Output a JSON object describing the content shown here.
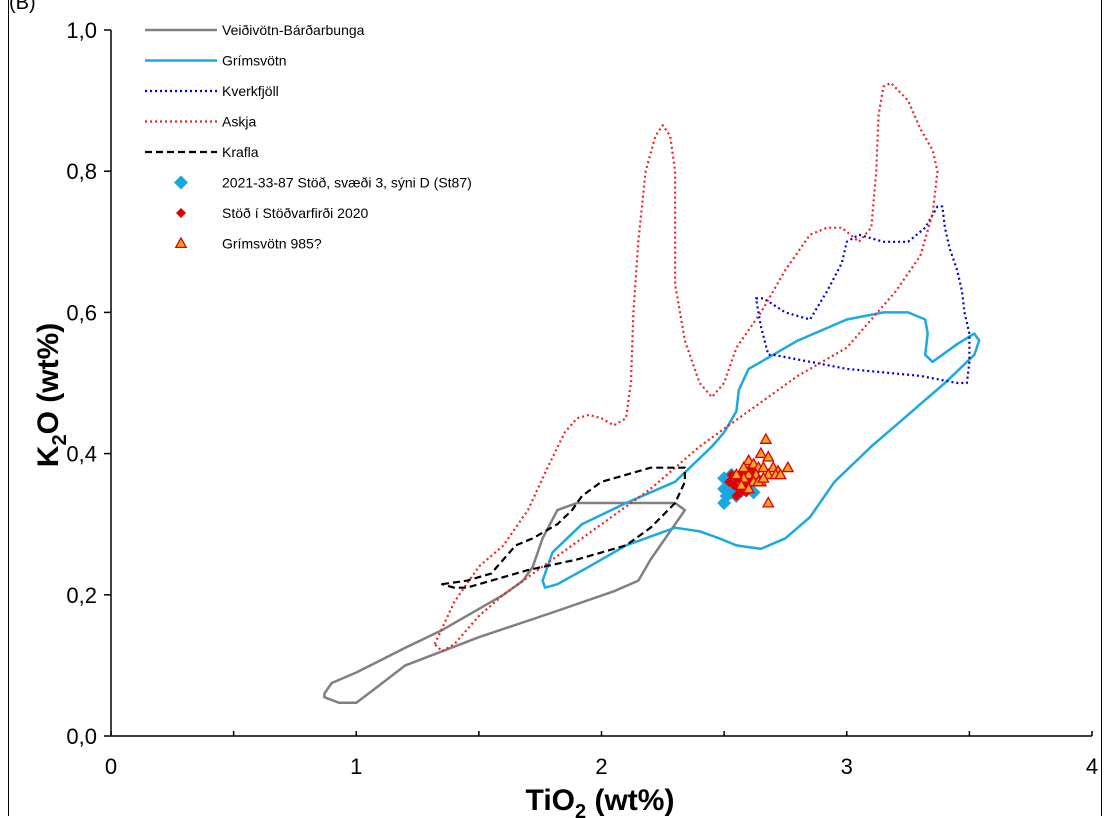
{
  "panel_label": "(B)",
  "colors": {
    "veidivotn": "#808080",
    "grimsvotn": "#1ba9e1",
    "kverkfjoll": "#0000cc",
    "askja": "#ee2222",
    "krafla": "#000000",
    "st87": "#1aa7e0",
    "stod2020": "#e00000",
    "grimsvotn985_edge": "#e00000",
    "grimsvotn985_fill": "#f5a623"
  },
  "chart_data": {
    "type": "scatter",
    "title": "",
    "xlabel": "TiO",
    "xlabel_sub": "2",
    "xlabel_suffix": " (wt%)",
    "ylabel": "K",
    "ylabel_sub": "2",
    "ylabel_suffix": "O (wt%)",
    "xlim": [
      0,
      4
    ],
    "ylim": [
      0,
      1
    ],
    "x_ticks": [
      {
        "value": 0,
        "label": "0"
      },
      {
        "value": 1,
        "label": "1"
      },
      {
        "value": 2,
        "label": "2"
      },
      {
        "value": 3,
        "label": "3"
      },
      {
        "value": 4,
        "label": "4"
      }
    ],
    "y_ticks": [
      {
        "value": 0,
        "label": "0,0"
      },
      {
        "value": 0.2,
        "label": "0,2"
      },
      {
        "value": 0.4,
        "label": "0,4"
      },
      {
        "value": 0.6,
        "label": "0,6"
      },
      {
        "value": 0.8,
        "label": "0,8"
      },
      {
        "value": 1.0,
        "label": "1,0"
      }
    ],
    "x_minor_step": 0.5,
    "grid": false,
    "legend_position": "top-left",
    "fields": [
      {
        "name": "Veiðivötn-Bárðarbunga",
        "style": "solid",
        "color_key": "veidivotn",
        "points": [
          [
            0.87,
            0.06
          ],
          [
            0.9,
            0.075
          ],
          [
            1.0,
            0.09
          ],
          [
            1.2,
            0.125
          ],
          [
            1.35,
            0.15
          ],
          [
            1.5,
            0.18
          ],
          [
            1.6,
            0.2
          ],
          [
            1.68,
            0.22
          ],
          [
            1.72,
            0.24
          ],
          [
            1.76,
            0.28
          ],
          [
            1.82,
            0.32
          ],
          [
            1.9,
            0.33
          ],
          [
            2.1,
            0.33
          ],
          [
            2.3,
            0.33
          ],
          [
            2.34,
            0.32
          ],
          [
            2.3,
            0.3
          ],
          [
            2.2,
            0.25
          ],
          [
            2.15,
            0.22
          ],
          [
            2.05,
            0.205
          ],
          [
            1.8,
            0.175
          ],
          [
            1.5,
            0.14
          ],
          [
            1.2,
            0.1
          ],
          [
            1.05,
            0.06
          ],
          [
            1.0,
            0.047
          ],
          [
            0.93,
            0.047
          ],
          [
            0.87,
            0.055
          ]
        ]
      },
      {
        "name": "Grímsvötn",
        "style": "solid",
        "color_key": "grimsvotn",
        "points": [
          [
            1.8,
            0.26
          ],
          [
            1.92,
            0.3
          ],
          [
            2.1,
            0.33
          ],
          [
            2.3,
            0.36
          ],
          [
            2.45,
            0.41
          ],
          [
            2.5,
            0.43
          ],
          [
            2.55,
            0.46
          ],
          [
            2.56,
            0.49
          ],
          [
            2.6,
            0.52
          ],
          [
            2.7,
            0.54
          ],
          [
            2.8,
            0.56
          ],
          [
            3.0,
            0.59
          ],
          [
            3.15,
            0.6
          ],
          [
            3.25,
            0.6
          ],
          [
            3.32,
            0.59
          ],
          [
            3.33,
            0.57
          ],
          [
            3.32,
            0.54
          ],
          [
            3.35,
            0.53
          ],
          [
            3.45,
            0.555
          ],
          [
            3.52,
            0.57
          ],
          [
            3.54,
            0.56
          ],
          [
            3.52,
            0.54
          ],
          [
            3.4,
            0.5
          ],
          [
            3.3,
            0.47
          ],
          [
            3.2,
            0.44
          ],
          [
            3.1,
            0.41
          ],
          [
            2.95,
            0.36
          ],
          [
            2.85,
            0.31
          ],
          [
            2.75,
            0.28
          ],
          [
            2.65,
            0.265
          ],
          [
            2.55,
            0.27
          ],
          [
            2.48,
            0.28
          ],
          [
            2.4,
            0.29
          ],
          [
            2.3,
            0.295
          ],
          [
            2.1,
            0.27
          ],
          [
            1.95,
            0.24
          ],
          [
            1.82,
            0.215
          ],
          [
            1.77,
            0.21
          ],
          [
            1.76,
            0.22
          ],
          [
            1.78,
            0.24
          ],
          [
            1.8,
            0.26
          ]
        ]
      },
      {
        "name": "Kverkfjöll",
        "style": "dotted",
        "color_key": "kverkfjoll",
        "points": [
          [
            2.63,
            0.62
          ],
          [
            2.66,
            0.62
          ],
          [
            2.75,
            0.6
          ],
          [
            2.85,
            0.59
          ],
          [
            2.92,
            0.63
          ],
          [
            2.98,
            0.67
          ],
          [
            3.0,
            0.7
          ],
          [
            3.05,
            0.71
          ],
          [
            3.15,
            0.7
          ],
          [
            3.25,
            0.7
          ],
          [
            3.32,
            0.72
          ],
          [
            3.37,
            0.75
          ],
          [
            3.39,
            0.75
          ],
          [
            3.4,
            0.72
          ],
          [
            3.42,
            0.69
          ],
          [
            3.45,
            0.66
          ],
          [
            3.47,
            0.63
          ],
          [
            3.48,
            0.6
          ],
          [
            3.5,
            0.57
          ],
          [
            3.5,
            0.53
          ],
          [
            3.49,
            0.5
          ],
          [
            3.45,
            0.5
          ],
          [
            3.3,
            0.51
          ],
          [
            3.0,
            0.52
          ],
          [
            2.85,
            0.53
          ],
          [
            2.7,
            0.54
          ],
          [
            2.68,
            0.54
          ],
          [
            2.65,
            0.58
          ],
          [
            2.63,
            0.62
          ]
        ]
      },
      {
        "name": "Askja",
        "style": "dotted",
        "color_key": "askja",
        "points": [
          [
            1.32,
            0.13
          ],
          [
            1.4,
            0.19
          ],
          [
            1.5,
            0.24
          ],
          [
            1.6,
            0.27
          ],
          [
            1.7,
            0.32
          ],
          [
            1.78,
            0.38
          ],
          [
            1.85,
            0.43
          ],
          [
            1.9,
            0.45
          ],
          [
            1.95,
            0.455
          ],
          [
            2.0,
            0.45
          ],
          [
            2.05,
            0.44
          ],
          [
            2.1,
            0.45
          ],
          [
            2.12,
            0.5
          ],
          [
            2.13,
            0.6
          ],
          [
            2.15,
            0.7
          ],
          [
            2.18,
            0.8
          ],
          [
            2.22,
            0.85
          ],
          [
            2.25,
            0.865
          ],
          [
            2.28,
            0.85
          ],
          [
            2.3,
            0.8
          ],
          [
            2.3,
            0.73
          ],
          [
            2.3,
            0.64
          ],
          [
            2.34,
            0.56
          ],
          [
            2.4,
            0.5
          ],
          [
            2.45,
            0.48
          ],
          [
            2.5,
            0.5
          ],
          [
            2.55,
            0.55
          ],
          [
            2.65,
            0.6
          ],
          [
            2.75,
            0.66
          ],
          [
            2.85,
            0.71
          ],
          [
            2.92,
            0.72
          ],
          [
            2.98,
            0.72
          ],
          [
            3.05,
            0.7
          ],
          [
            3.1,
            0.72
          ],
          [
            3.12,
            0.8
          ],
          [
            3.13,
            0.88
          ],
          [
            3.15,
            0.92
          ],
          [
            3.18,
            0.925
          ],
          [
            3.25,
            0.9
          ],
          [
            3.3,
            0.86
          ],
          [
            3.35,
            0.83
          ],
          [
            3.37,
            0.8
          ],
          [
            3.35,
            0.74
          ],
          [
            3.3,
            0.68
          ],
          [
            3.2,
            0.63
          ],
          [
            3.1,
            0.59
          ],
          [
            3.0,
            0.55
          ],
          [
            2.8,
            0.51
          ],
          [
            2.6,
            0.46
          ],
          [
            2.4,
            0.41
          ],
          [
            2.2,
            0.35
          ],
          [
            2.0,
            0.3
          ],
          [
            1.8,
            0.25
          ],
          [
            1.6,
            0.2
          ],
          [
            1.5,
            0.17
          ],
          [
            1.4,
            0.13
          ],
          [
            1.35,
            0.12
          ],
          [
            1.32,
            0.13
          ]
        ]
      },
      {
        "name": "Krafla",
        "style": "dashed",
        "color_key": "krafla",
        "points": [
          [
            1.35,
            0.215
          ],
          [
            1.45,
            0.22
          ],
          [
            1.55,
            0.23
          ],
          [
            1.6,
            0.25
          ],
          [
            1.65,
            0.27
          ],
          [
            1.72,
            0.28
          ],
          [
            1.82,
            0.3
          ],
          [
            1.88,
            0.32
          ],
          [
            1.92,
            0.34
          ],
          [
            2.0,
            0.36
          ],
          [
            2.1,
            0.37
          ],
          [
            2.2,
            0.38
          ],
          [
            2.3,
            0.38
          ],
          [
            2.34,
            0.38
          ],
          [
            2.34,
            0.36
          ],
          [
            2.3,
            0.33
          ],
          [
            2.2,
            0.295
          ],
          [
            2.1,
            0.27
          ],
          [
            1.9,
            0.25
          ],
          [
            1.7,
            0.235
          ],
          [
            1.55,
            0.22
          ],
          [
            1.45,
            0.21
          ],
          [
            1.4,
            0.21
          ],
          [
            1.35,
            0.215
          ]
        ]
      }
    ],
    "series": [
      {
        "name": "2021-33-87 Stöð, svæði 3, sýni D (St87)",
        "marker": "diamond",
        "color_key": "st87",
        "points": [
          [
            2.5,
            0.33
          ],
          [
            2.51,
            0.34
          ],
          [
            2.5,
            0.35
          ],
          [
            2.52,
            0.36
          ],
          [
            2.53,
            0.345
          ],
          [
            2.54,
            0.35
          ],
          [
            2.55,
            0.355
          ],
          [
            2.56,
            0.345
          ],
          [
            2.58,
            0.35
          ],
          [
            2.5,
            0.365
          ],
          [
            2.53,
            0.37
          ],
          [
            2.56,
            0.36
          ],
          [
            2.59,
            0.355
          ],
          [
            2.61,
            0.36
          ],
          [
            2.62,
            0.345
          ],
          [
            2.55,
            0.34
          ]
        ]
      },
      {
        "name": "Stöð í Stöðvarfirði 2020",
        "marker": "diamond-small",
        "color_key": "stod2020",
        "points": [
          [
            2.52,
            0.36
          ],
          [
            2.54,
            0.355
          ],
          [
            2.55,
            0.365
          ],
          [
            2.56,
            0.35
          ],
          [
            2.57,
            0.37
          ],
          [
            2.58,
            0.36
          ],
          [
            2.59,
            0.375
          ],
          [
            2.6,
            0.365
          ],
          [
            2.61,
            0.38
          ],
          [
            2.62,
            0.37
          ],
          [
            2.63,
            0.375
          ],
          [
            2.57,
            0.345
          ],
          [
            2.53,
            0.37
          ],
          [
            2.6,
            0.355
          ],
          [
            2.55,
            0.34
          ],
          [
            2.59,
            0.345
          ]
        ]
      },
      {
        "name": "Grímsvötn 985?",
        "marker": "triangle",
        "color_key": "grimsvotn985",
        "points": [
          [
            2.67,
            0.42
          ],
          [
            2.65,
            0.4
          ],
          [
            2.68,
            0.395
          ],
          [
            2.6,
            0.39
          ],
          [
            2.62,
            0.385
          ],
          [
            2.64,
            0.38
          ],
          [
            2.66,
            0.38
          ],
          [
            2.7,
            0.38
          ],
          [
            2.76,
            0.38
          ],
          [
            2.72,
            0.375
          ],
          [
            2.6,
            0.37
          ],
          [
            2.63,
            0.37
          ],
          [
            2.68,
            0.37
          ],
          [
            2.71,
            0.37
          ],
          [
            2.73,
            0.37
          ],
          [
            2.58,
            0.365
          ],
          [
            2.65,
            0.36
          ],
          [
            2.62,
            0.36
          ],
          [
            2.57,
            0.355
          ],
          [
            2.6,
            0.35
          ],
          [
            2.64,
            0.36
          ],
          [
            2.66,
            0.365
          ],
          [
            2.68,
            0.33
          ],
          [
            2.55,
            0.37
          ],
          [
            2.58,
            0.38
          ]
        ]
      }
    ]
  }
}
